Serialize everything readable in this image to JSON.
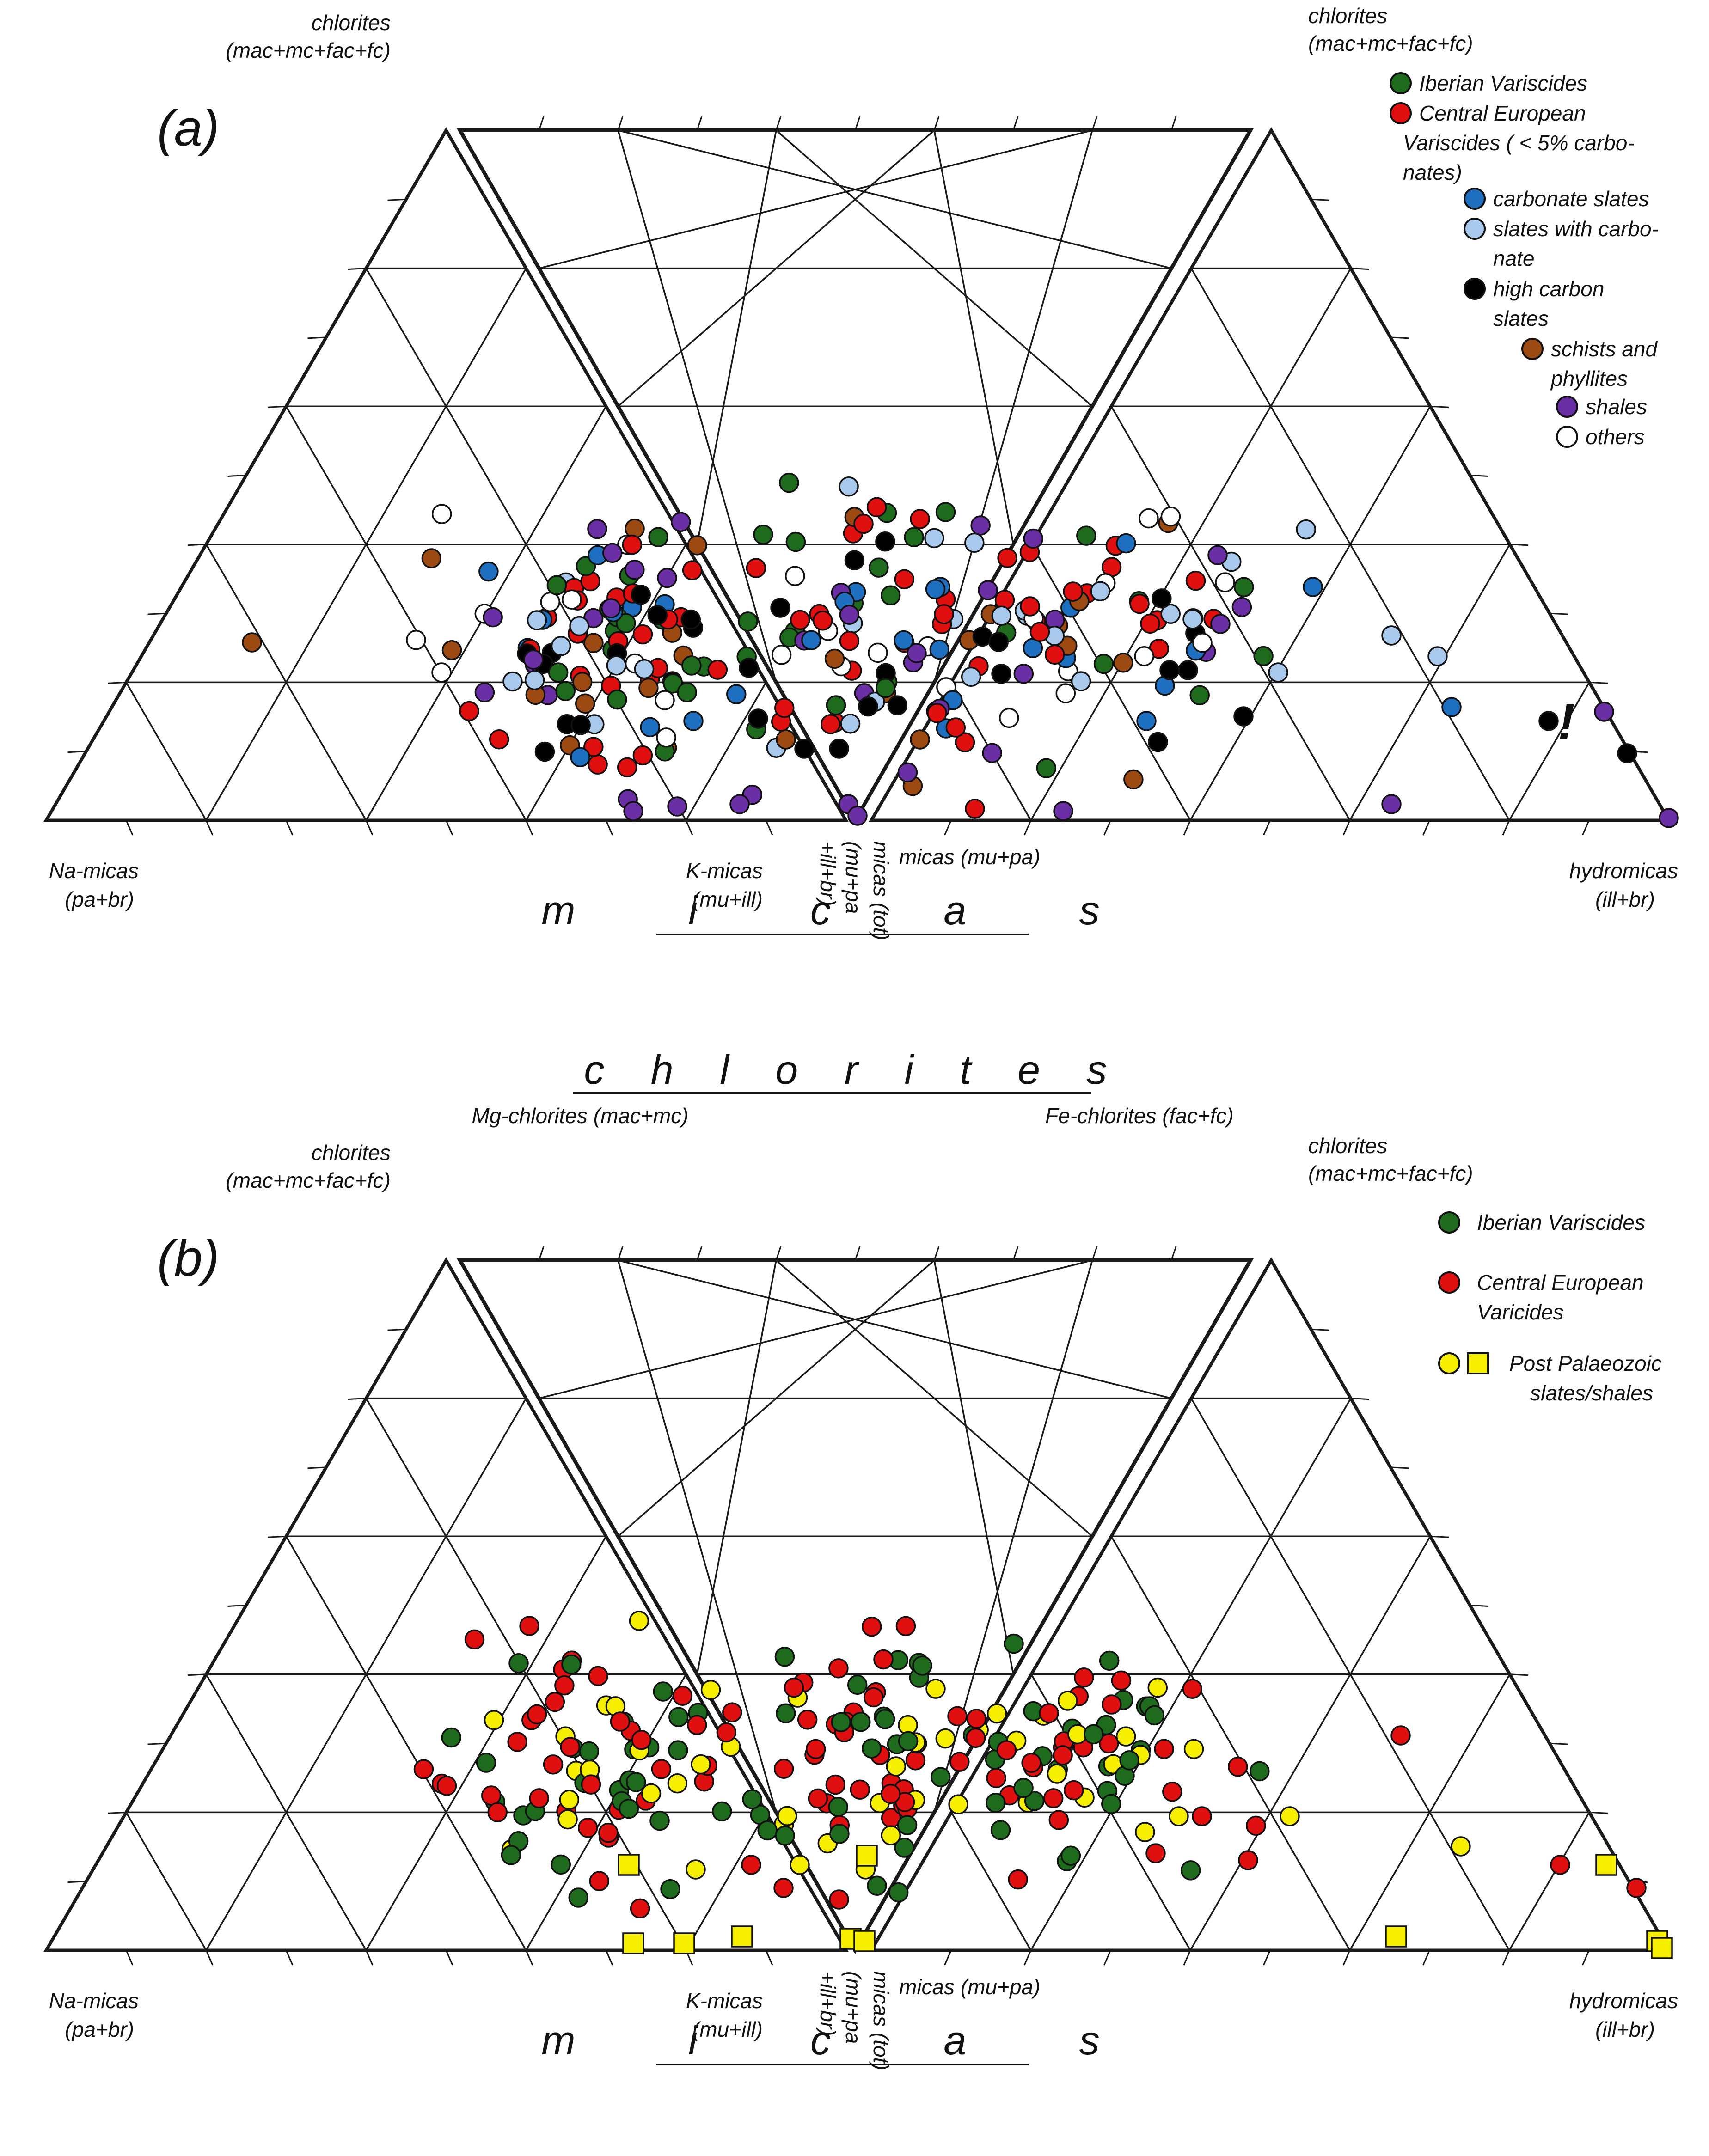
{
  "colors": {
    "iberian": "#1e6b1e",
    "central": "#e01010",
    "carbonate": "#1f6fc0",
    "slates_carb": "#a8c8ec",
    "high_carbon": "#000000",
    "schists": "#9c4a12",
    "shales": "#6b2fa5",
    "others": "#ffffff",
    "post": "#f7ef00"
  },
  "titles": {
    "top": "c h l o r i t e s",
    "bottom": "m i c a s"
  },
  "corner_labels": {
    "left_top_1": "chlorites",
    "left_top_2": "(mac+mc+fac+fc)",
    "mg": "Mg-chlorites (mac+mc)",
    "fe": "Fe-chlorites (fac+fc)",
    "right_top_1": "chlorites",
    "right_top_2": "(mac+mc+fac+fc)",
    "na_1": "Na-micas",
    "na_2": "(pa+br)",
    "k_1": "K-micas",
    "k_2": "(mu+ill)",
    "tot_1": "micas (tot)",
    "tot_2": "(mu+pa",
    "tot_3": "+ill+br)",
    "micas_mupa": "micas (mu+pa)",
    "hydro_1": "hydromicas",
    "hydro_2": "(ill+br)"
  },
  "panels": [
    {
      "label": "(a)",
      "legend": [
        {
          "key": "iberian",
          "lines": [
            "Iberian Variscides"
          ]
        },
        {
          "key": "central",
          "lines": [
            "Central European",
            "Variscides ( < 5% carbo-",
            "nates)"
          ]
        },
        {
          "key": "carbonate",
          "lines": [
            "carbonate slates"
          ]
        },
        {
          "key": "slates_carb",
          "lines": [
            "slates with carbo-",
            "nate"
          ]
        },
        {
          "key": "high_carbon",
          "lines": [
            "high carbon",
            "slates"
          ]
        },
        {
          "key": "schists",
          "lines": [
            "schists and",
            "phyllites"
          ]
        },
        {
          "key": "shales",
          "lines": [
            "shales"
          ]
        },
        {
          "key": "others",
          "lines": [
            "others"
          ]
        }
      ],
      "annotation": "!"
    },
    {
      "label": "(b)",
      "legend": [
        {
          "key": "iberian",
          "lines": [
            "Iberian Variscides"
          ]
        },
        {
          "key": "central",
          "lines": [
            "Central European",
            "Varicides"
          ]
        },
        {
          "key": "post",
          "lines": [
            "Post Palaeozoic",
            "slates/shales"
          ]
        }
      ]
    }
  ]
}
